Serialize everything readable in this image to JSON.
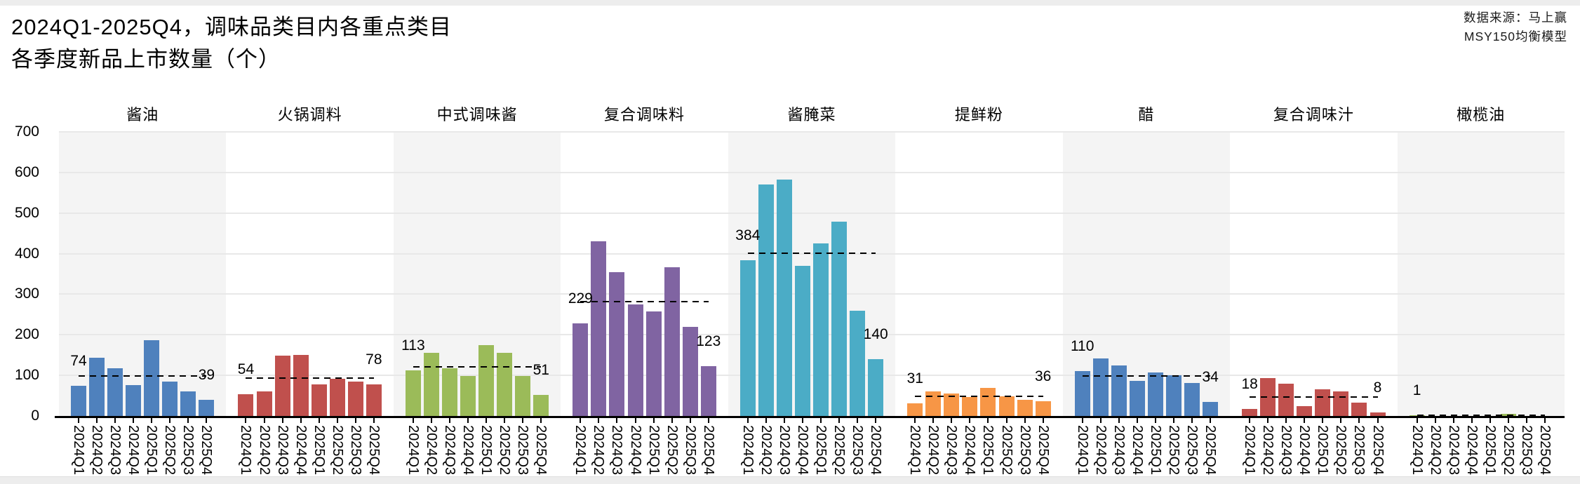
{
  "header": {
    "title_line1": "2024Q1-2025Q4，调味品类目内各重点类目",
    "title_line2": "各季度新品上市数量（个）",
    "source_line1": "数据来源：马上赢",
    "source_line2": "MSY150均衡模型"
  },
  "chart_data": {
    "type": "bar",
    "title": "2024Q1-2025Q4，调味品类目内各重点类目各季度新品上市数量（个）",
    "subtitle_source": "数据来源：马上赢 MSY150均衡模型",
    "categories": [
      "2024Q1",
      "2024Q2",
      "2024Q3",
      "2024Q4",
      "2025Q1",
      "2025Q2",
      "2025Q3",
      "2025Q4"
    ],
    "ylim": [
      0,
      700
    ],
    "yticks": [
      0,
      100,
      200,
      300,
      400,
      500,
      600,
      700
    ],
    "grid": true,
    "legend": "none",
    "mean_line_style": "dashed-black-per-panel-mean",
    "panel_bg_alternate": [
      "#f4f4f4",
      "#ffffff"
    ],
    "panels": [
      {
        "title": "酱油",
        "color": "#4f81bd",
        "values": [
          74,
          144,
          117,
          76,
          186,
          85,
          61,
          39
        ],
        "first_label": "74",
        "last_label": "39"
      },
      {
        "title": "火锅调料",
        "color": "#c0504d",
        "values": [
          54,
          61,
          149,
          151,
          77,
          92,
          84,
          78
        ],
        "first_label": "54",
        "last_label": "78"
      },
      {
        "title": "中式调味酱",
        "color": "#9bbb59",
        "values": [
          113,
          155,
          118,
          98,
          175,
          156,
          99,
          51
        ],
        "first_label": "113",
        "last_label": "51"
      },
      {
        "title": "复合调味料",
        "color": "#8064a2",
        "values": [
          229,
          430,
          355,
          275,
          258,
          367,
          220,
          123
        ],
        "first_label": "229",
        "last_label": "123"
      },
      {
        "title": "酱腌菜",
        "color": "#4bacc6",
        "values": [
          384,
          570,
          583,
          370,
          425,
          478,
          260,
          140
        ],
        "first_label": "384",
        "last_label": "140"
      },
      {
        "title": "提鲜粉",
        "color": "#f79646",
        "values": [
          31,
          60,
          56,
          46,
          70,
          48,
          39,
          36
        ],
        "first_label": "31",
        "last_label": "36"
      },
      {
        "title": "醋",
        "color": "#4f81bd",
        "values": [
          110,
          142,
          125,
          87,
          108,
          100,
          81,
          34
        ],
        "first_label": "110",
        "last_label": "34"
      },
      {
        "title": "复合调味汁",
        "color": "#c0504d",
        "values": [
          18,
          93,
          79,
          24,
          65,
          61,
          32,
          8
        ],
        "first_label": "18",
        "last_label": "8"
      },
      {
        "title": "橄榄油",
        "color": "#9bbb59",
        "values": [
          1,
          0,
          0,
          0,
          0,
          6,
          0,
          0
        ],
        "first_label": "1",
        "last_label": null
      }
    ]
  }
}
